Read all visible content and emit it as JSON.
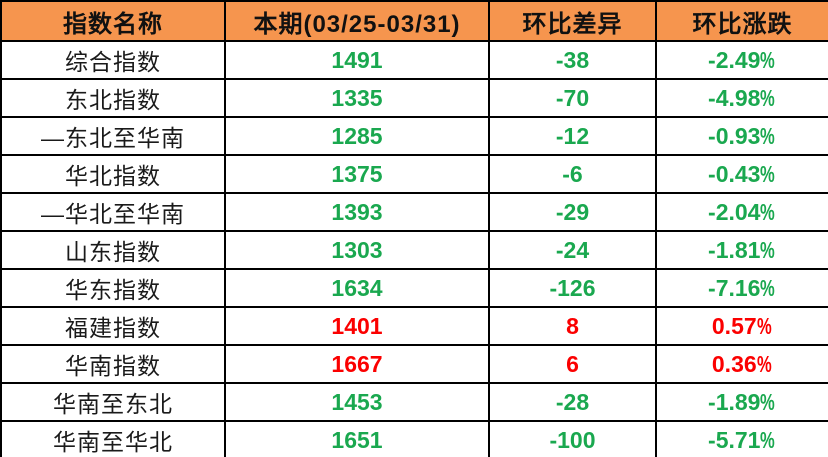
{
  "table": {
    "headers": [
      "指数名称",
      "本期(03/25-03/31)",
      "环比差异",
      "环比涨跌"
    ],
    "rows": [
      {
        "name": "综合指数",
        "current": "1491",
        "diff": "-38",
        "change": "-2.49%",
        "trend": "down"
      },
      {
        "name": "东北指数",
        "current": "1335",
        "diff": "-70",
        "change": "-4.98%",
        "trend": "down"
      },
      {
        "name": "—东北至华南",
        "current": "1285",
        "diff": "-12",
        "change": "-0.93%",
        "trend": "down"
      },
      {
        "name": "华北指数",
        "current": "1375",
        "diff": "-6",
        "change": "-0.43%",
        "trend": "down"
      },
      {
        "name": "—华北至华南",
        "current": "1393",
        "diff": "-29",
        "change": "-2.04%",
        "trend": "down"
      },
      {
        "name": "山东指数",
        "current": "1303",
        "diff": "-24",
        "change": "-1.81%",
        "trend": "down"
      },
      {
        "name": "华东指数",
        "current": "1634",
        "diff": "-126",
        "change": "-7.16%",
        "trend": "down"
      },
      {
        "name": "福建指数",
        "current": "1401",
        "diff": "8",
        "change": "0.57%",
        "trend": "up"
      },
      {
        "name": "华南指数",
        "current": "1667",
        "diff": "6",
        "change": "0.36%",
        "trend": "up"
      },
      {
        "name": "华南至东北",
        "current": "1453",
        "diff": "-28",
        "change": "-1.89%",
        "trend": "down"
      },
      {
        "name": "华南至华北",
        "current": "1651",
        "diff": "-100",
        "change": "-5.71%",
        "trend": "down"
      }
    ]
  },
  "colors": {
    "header_bg": "#F6954E",
    "header_text": "#111111",
    "down": "#1AA84F",
    "up": "#FB0000",
    "border": "#000000"
  }
}
